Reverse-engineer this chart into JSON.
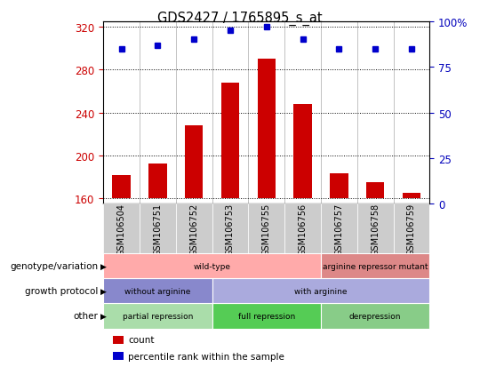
{
  "title": "GDS2427 / 1765895_s_at",
  "samples": [
    "GSM106504",
    "GSM106751",
    "GSM106752",
    "GSM106753",
    "GSM106755",
    "GSM106756",
    "GSM106757",
    "GSM106758",
    "GSM106759"
  ],
  "counts": [
    182,
    192,
    228,
    268,
    290,
    248,
    183,
    175,
    165
  ],
  "percentiles": [
    85,
    87,
    90,
    95,
    97,
    90,
    85,
    85,
    85
  ],
  "ylim_left": [
    155,
    325
  ],
  "ylim_right": [
    0,
    100
  ],
  "yticks_left": [
    160,
    200,
    240,
    280,
    320
  ],
  "yticks_right": [
    0,
    25,
    50,
    75,
    100
  ],
  "bar_color": "#CC0000",
  "dot_color": "#0000CC",
  "bar_bottom": 160,
  "annotation_rows": [
    {
      "label": "other",
      "segments": [
        {
          "text": "partial repression",
          "start": 0,
          "end": 3,
          "color": "#AADDAA"
        },
        {
          "text": "full repression",
          "start": 3,
          "end": 6,
          "color": "#55CC55"
        },
        {
          "text": "derepression",
          "start": 6,
          "end": 9,
          "color": "#88CC88"
        }
      ]
    },
    {
      "label": "growth protocol",
      "segments": [
        {
          "text": "without arginine",
          "start": 0,
          "end": 3,
          "color": "#8888CC"
        },
        {
          "text": "with arginine",
          "start": 3,
          "end": 9,
          "color": "#AAAADD"
        }
      ]
    },
    {
      "label": "genotype/variation",
      "segments": [
        {
          "text": "wild-type",
          "start": 0,
          "end": 6,
          "color": "#FFAAAA"
        },
        {
          "text": "arginine repressor mutant",
          "start": 6,
          "end": 9,
          "color": "#DD8888"
        }
      ]
    }
  ],
  "legend_items": [
    {
      "color": "#CC0000",
      "label": "count"
    },
    {
      "color": "#0000CC",
      "label": "percentile rank within the sample"
    }
  ],
  "left_tick_color": "#CC0000",
  "right_tick_color": "#0000BB",
  "xtick_bg_color": "#CCCCCC",
  "right_axis_100_label": "100%"
}
